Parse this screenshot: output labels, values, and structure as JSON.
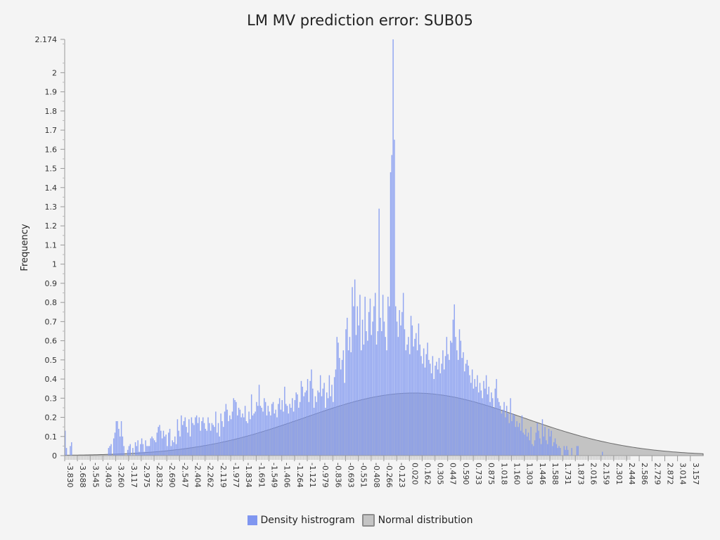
{
  "chart_data": {
    "type": "bar",
    "title": "LM MV prediction error: SUB05",
    "ylabel": "Frequency",
    "xlabel": "",
    "xlim": [
      -3.83,
      3.3
    ],
    "ylim": [
      0,
      2.174
    ],
    "y_ticks": [
      "0",
      "0.1",
      "0.2",
      "0.3",
      "0.4",
      "0.5",
      "0.6",
      "0.7",
      "0.8",
      "0.9",
      "1",
      "1.1",
      "1.2",
      "1.3",
      "1.4",
      "1.5",
      "1.6",
      "1.7",
      "1.8",
      "1.9",
      "2",
      "2.174"
    ],
    "x_ticks": [
      "-3.830",
      "-3.688",
      "-3.545",
      "-3.403",
      "-3.260",
      "-3.117",
      "-2.975",
      "-2.832",
      "-2.690",
      "-2.547",
      "-2.404",
      "-2.262",
      "-2.119",
      "-1.977",
      "-1.834",
      "-1.691",
      "-1.549",
      "-1.406",
      "-1.264",
      "-1.121",
      "-0.979",
      "-0.836",
      "-0.693",
      "-0.551",
      "-0.408",
      "-0.266",
      "-0.123",
      "0.020",
      "0.162",
      "0.305",
      "0.447",
      "0.590",
      "0.733",
      "0.875",
      "1.018",
      "1.160",
      "1.303",
      "1.446",
      "1.588",
      "1.731",
      "1.873",
      "2.016",
      "2.159",
      "2.301",
      "2.444",
      "2.586",
      "2.729",
      "2.872",
      "3.014",
      "3.157"
    ],
    "grid": false,
    "legend_position": "bottom",
    "colors": {
      "histogram": "#7f96f0",
      "normal_fill": "#9a9a9a",
      "normal_stroke": "#6a6a6a"
    },
    "series": [
      {
        "name": "Density histrogram",
        "type": "bar",
        "bin_start": -3.83,
        "bin_width": 0.01425,
        "values": [
          0.13,
          0.04,
          0,
          0,
          0.05,
          0.07,
          0,
          0,
          0,
          0,
          0,
          0,
          0,
          0,
          0,
          0,
          0,
          0,
          0,
          0,
          0,
          0,
          0,
          0,
          0,
          0,
          0,
          0,
          0,
          0,
          0,
          0,
          0,
          0,
          0.04,
          0.05,
          0.06,
          0,
          0.09,
          0.12,
          0.18,
          0.18,
          0.14,
          0.1,
          0.18,
          0.1,
          0.05,
          0,
          0,
          0.03,
          0.05,
          0.06,
          0,
          0.04,
          0,
          0.07,
          0.05,
          0.08,
          0.02,
          0.06,
          0.09,
          0.06,
          0.02,
          0.08,
          0.05,
          0.05,
          0.05,
          0.09,
          0.1,
          0.09,
          0.08,
          0.07,
          0.12,
          0.15,
          0.16,
          0.13,
          0.09,
          0.13,
          0.1,
          0.11,
          0.05,
          0.12,
          0.14,
          0.05,
          0.08,
          0.07,
          0.1,
          0.06,
          0.19,
          0.13,
          0.1,
          0.21,
          0.16,
          0.18,
          0.2,
          0.15,
          0.12,
          0.19,
          0.1,
          0.2,
          0.17,
          0.16,
          0.2,
          0.21,
          0.17,
          0.2,
          0.13,
          0.18,
          0.2,
          0.17,
          0.14,
          0.13,
          0.2,
          0.17,
          0.13,
          0.17,
          0.16,
          0.15,
          0.23,
          0.12,
          0.17,
          0.1,
          0.22,
          0.18,
          0.15,
          0.23,
          0.27,
          0.24,
          0.18,
          0.21,
          0.19,
          0.23,
          0.3,
          0.29,
          0.28,
          0.21,
          0.25,
          0.24,
          0.2,
          0.22,
          0.2,
          0.26,
          0.18,
          0.17,
          0.23,
          0.19,
          0.32,
          0.21,
          0.22,
          0.23,
          0.28,
          0.26,
          0.37,
          0.26,
          0.25,
          0.23,
          0.3,
          0.28,
          0.21,
          0.26,
          0.23,
          0.21,
          0.27,
          0.28,
          0.22,
          0.24,
          0.2,
          0.27,
          0.3,
          0.24,
          0.29,
          0.23,
          0.36,
          0.27,
          0.26,
          0.22,
          0.27,
          0.25,
          0.3,
          0.23,
          0.29,
          0.33,
          0.32,
          0.25,
          0.28,
          0.39,
          0.36,
          0.31,
          0.33,
          0.34,
          0.4,
          0.28,
          0.39,
          0.45,
          0.35,
          0.25,
          0.31,
          0.28,
          0.34,
          0.33,
          0.42,
          0.31,
          0.35,
          0.38,
          0.25,
          0.33,
          0.3,
          0.42,
          0.31,
          0.37,
          0.28,
          0.41,
          0.45,
          0.62,
          0.59,
          0.51,
          0.45,
          0.5,
          0.55,
          0.38,
          0.66,
          0.72,
          0.55,
          0.62,
          0.54,
          0.88,
          0.78,
          0.92,
          0.63,
          0.78,
          0.68,
          0.84,
          0.55,
          0.71,
          0.58,
          0.83,
          0.65,
          0.6,
          0.75,
          0.82,
          0.63,
          0.7,
          0.78,
          0.85,
          0.58,
          0.65,
          1.29,
          0.72,
          0.65,
          0.84,
          0.7,
          0.62,
          0.55,
          0.83,
          0.78,
          1.48,
          1.57,
          2.174,
          1.65,
          0.78,
          0.7,
          0.62,
          0.76,
          0.68,
          0.75,
          0.85,
          0.66,
          0.55,
          0.58,
          0.62,
          0.53,
          0.73,
          0.68,
          0.57,
          0.61,
          0.64,
          0.55,
          0.69,
          0.58,
          0.52,
          0.48,
          0.56,
          0.46,
          0.53,
          0.59,
          0.5,
          0.48,
          0.43,
          0.52,
          0.4,
          0.47,
          0.49,
          0.45,
          0.51,
          0.43,
          0.48,
          0.55,
          0.45,
          0.52,
          0.62,
          0.53,
          0.5,
          0.6,
          0.59,
          0.71,
          0.79,
          0.62,
          0.55,
          0.5,
          0.66,
          0.6,
          0.51,
          0.54,
          0.44,
          0.48,
          0.5,
          0.47,
          0.42,
          0.38,
          0.45,
          0.35,
          0.4,
          0.36,
          0.42,
          0.33,
          0.38,
          0.34,
          0.3,
          0.39,
          0.35,
          0.42,
          0.32,
          0.36,
          0.28,
          0.33,
          0.3,
          0.25,
          0.35,
          0.4,
          0.3,
          0.28,
          0.26,
          0.22,
          0.24,
          0.28,
          0.2,
          0.26,
          0.22,
          0.17,
          0.3,
          0.18,
          0.22,
          0.21,
          0.15,
          0.18,
          0.15,
          0.17,
          0.13,
          0.21,
          0.12,
          0.11,
          0.14,
          0.1,
          0.12,
          0.08,
          0.15,
          0.06,
          0.05,
          0.08,
          0.12,
          0.17,
          0.13,
          0.09,
          0.06,
          0.19,
          0.1,
          0.15,
          0.08,
          0.06,
          0.14,
          0.1,
          0.13,
          0.05,
          0.07,
          0.09,
          0.06,
          0.04,
          0.05,
          0.04,
          0,
          0,
          0.05,
          0.03,
          0.05,
          0.03,
          0,
          0,
          0.04,
          0,
          0,
          0,
          0.05,
          0.05,
          0,
          0,
          0,
          0,
          0,
          0,
          0,
          0,
          0,
          0,
          0,
          0,
          0,
          0,
          0,
          0,
          0,
          0,
          0.02,
          0,
          0,
          0,
          0,
          0,
          0,
          0,
          0,
          0,
          0,
          0,
          0,
          0,
          0,
          0,
          0,
          0,
          0,
          0,
          0,
          0
        ]
      },
      {
        "name": "Normal distribution",
        "type": "area",
        "mean": 0.07,
        "std": 1.22,
        "peak_density": 0.327
      }
    ]
  }
}
